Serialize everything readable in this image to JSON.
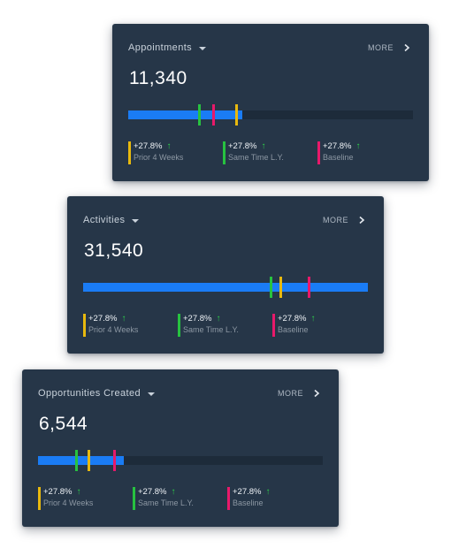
{
  "colors": {
    "card_bg": "#263648",
    "bar_fill": "#1a7cf5",
    "bar_track": "#1d2b3a",
    "prior_4_weeks": "#e8b90e",
    "same_time_ly": "#27c240",
    "baseline": "#e8196a",
    "arrow_up": "#2ed14a"
  },
  "cards": [
    {
      "title": "Appointments",
      "more_label": "MORE",
      "value": "11,340",
      "fill_fraction": 0.4,
      "markers": [
        {
          "series": "same_time_ly",
          "position_fraction": 0.245
        },
        {
          "series": "baseline",
          "position_fraction": 0.295
        },
        {
          "series": "prior_4_weeks",
          "position_fraction": 0.375
        }
      ],
      "legend": [
        {
          "series": "prior_4_weeks",
          "change": "+27.8%",
          "label": "Prior 4 Weeks"
        },
        {
          "series": "same_time_ly",
          "change": "+27.8%",
          "label": "Same Time L.Y."
        },
        {
          "series": "baseline",
          "change": "+27.8%",
          "label": "Baseline"
        }
      ]
    },
    {
      "title": "Activities",
      "more_label": "MORE",
      "value": "31,540",
      "fill_fraction": 1.0,
      "markers": [
        {
          "series": "same_time_ly",
          "position_fraction": 0.655
        },
        {
          "series": "prior_4_weeks",
          "position_fraction": 0.69
        },
        {
          "series": "baseline",
          "position_fraction": 0.79
        }
      ],
      "legend": [
        {
          "series": "prior_4_weeks",
          "change": "+27.8%",
          "label": "Prior 4 Weeks"
        },
        {
          "series": "same_time_ly",
          "change": "+27.8%",
          "label": "Same Time L.Y."
        },
        {
          "series": "baseline",
          "change": "+27.8%",
          "label": "Baseline"
        }
      ]
    },
    {
      "title": "Opportunities Created",
      "more_label": "MORE",
      "value": "6,544",
      "fill_fraction": 0.3,
      "markers": [
        {
          "series": "same_time_ly",
          "position_fraction": 0.13
        },
        {
          "series": "prior_4_weeks",
          "position_fraction": 0.175
        },
        {
          "series": "baseline",
          "position_fraction": 0.265
        }
      ],
      "legend": [
        {
          "series": "prior_4_weeks",
          "change": "+27.8%",
          "label": "Prior 4 Weeks"
        },
        {
          "series": "same_time_ly",
          "change": "+27.8%",
          "label": "Same Time L.Y."
        },
        {
          "series": "baseline",
          "change": "+27.8%",
          "label": "Baseline"
        }
      ]
    }
  ],
  "icons": {
    "dropdown": "chevron-down-icon",
    "more": "chevron-right-icon",
    "trend": "arrow-up-icon",
    "arrow_glyph": "↑"
  }
}
